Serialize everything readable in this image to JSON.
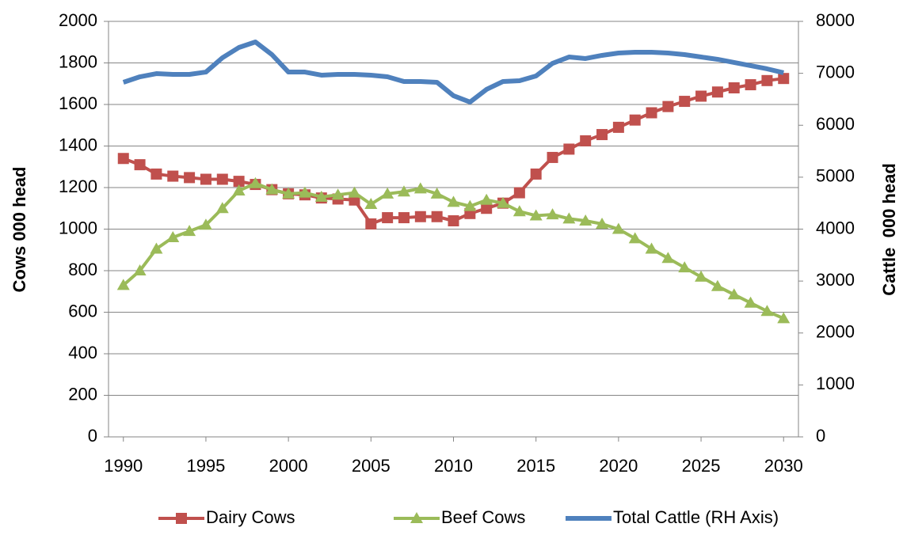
{
  "chart_data": {
    "type": "line",
    "x": [
      1990,
      1991,
      1992,
      1993,
      1994,
      1995,
      1996,
      1997,
      1998,
      1999,
      2000,
      2001,
      2002,
      2003,
      2004,
      2005,
      2006,
      2007,
      2008,
      2009,
      2010,
      2011,
      2012,
      2013,
      2014,
      2015,
      2016,
      2017,
      2018,
      2019,
      2020,
      2021,
      2022,
      2023,
      2024,
      2025,
      2026,
      2027,
      2028,
      2029,
      2030
    ],
    "series": [
      {
        "name": "Dairy Cows",
        "color": "#c0504d",
        "marker": "square",
        "values": [
          1340,
          1310,
          1265,
          1255,
          1248,
          1240,
          1240,
          1230,
          1215,
          1190,
          1170,
          1165,
          1150,
          1145,
          1140,
          1025,
          1055,
          1055,
          1060,
          1060,
          1040,
          1075,
          1100,
          1125,
          1175,
          1265,
          1345,
          1385,
          1425,
          1455,
          1490,
          1525,
          1560,
          1590,
          1615,
          1640,
          1660,
          1680,
          1695,
          1715,
          1725
        ]
      },
      {
        "name": "Beef Cows",
        "color": "#9bbb59",
        "marker": "triangle",
        "values": [
          730,
          800,
          905,
          960,
          990,
          1020,
          1100,
          1185,
          1220,
          1190,
          1170,
          1175,
          1155,
          1165,
          1175,
          1120,
          1170,
          1180,
          1195,
          1170,
          1130,
          1110,
          1140,
          1125,
          1085,
          1065,
          1070,
          1050,
          1040,
          1025,
          1000,
          955,
          905,
          860,
          815,
          770,
          725,
          685,
          645,
          605,
          570
        ]
      },
      {
        "name": "Total Cattle (RH Axis)",
        "color": "#4f81bd",
        "axis": "y2",
        "values": [
          6827,
          6933,
          6994,
          6979,
          6979,
          7024,
          7299,
          7497,
          7604,
          7360,
          7024,
          7024,
          6964,
          6979,
          6979,
          6964,
          6933,
          6842,
          6842,
          6827,
          6568,
          6446,
          6690,
          6842,
          6857,
          6949,
          7192,
          7314,
          7284,
          7345,
          7390,
          7406,
          7406,
          7390,
          7360,
          7314,
          7269,
          7208,
          7147,
          7086,
          7010
        ]
      }
    ],
    "y_label": "Cows 000 head",
    "y2_label": "Cattle  000 head",
    "xlim": [
      1989.1,
      2030.9
    ],
    "xticks": [
      1990,
      1995,
      2000,
      2005,
      2010,
      2015,
      2020,
      2025,
      2030
    ],
    "ylim": [
      0,
      2000
    ],
    "yticks": [
      0,
      200,
      400,
      600,
      800,
      1000,
      1200,
      1400,
      1600,
      1800,
      2000
    ],
    "y2lim": [
      0,
      8000
    ],
    "y2ticks": [
      0,
      1000,
      2000,
      3000,
      4000,
      5000,
      6000,
      7000,
      8000
    ],
    "grid": true,
    "legend": "bottom"
  }
}
